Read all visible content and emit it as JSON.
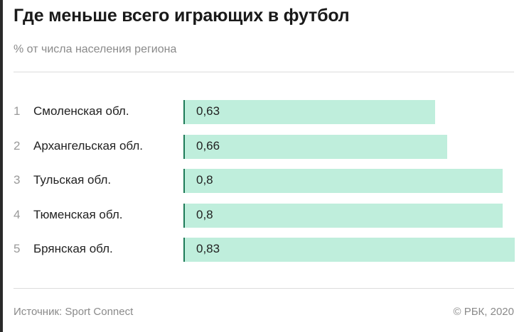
{
  "title": "Где меньше всего играющих в футбол",
  "subtitle": "% от числа населения региона",
  "footer": {
    "source": "Источник: Sport Connect",
    "copyright": "© РБК, 2020"
  },
  "colors": {
    "bar_fill": "#bfeedc",
    "bar_edge": "#1d7a57"
  },
  "chart_data": {
    "type": "bar",
    "orientation": "horizontal",
    "title": "Где меньше всего играющих в футбол",
    "subtitle": "% от числа населения региона",
    "ranks": [
      "1",
      "2",
      "3",
      "4",
      "5"
    ],
    "categories": [
      "Смоленская обл.",
      "Архангельская обл.",
      "Тульская обл.",
      "Тюменская обл.",
      "Брянская обл."
    ],
    "values": [
      0.63,
      0.66,
      0.8,
      0.8,
      0.83
    ],
    "value_labels": [
      "0,63",
      "0,66",
      "0,8",
      "0,8",
      "0,83"
    ],
    "xlim": [
      0,
      0.83
    ],
    "grid": false,
    "legend": "none"
  }
}
